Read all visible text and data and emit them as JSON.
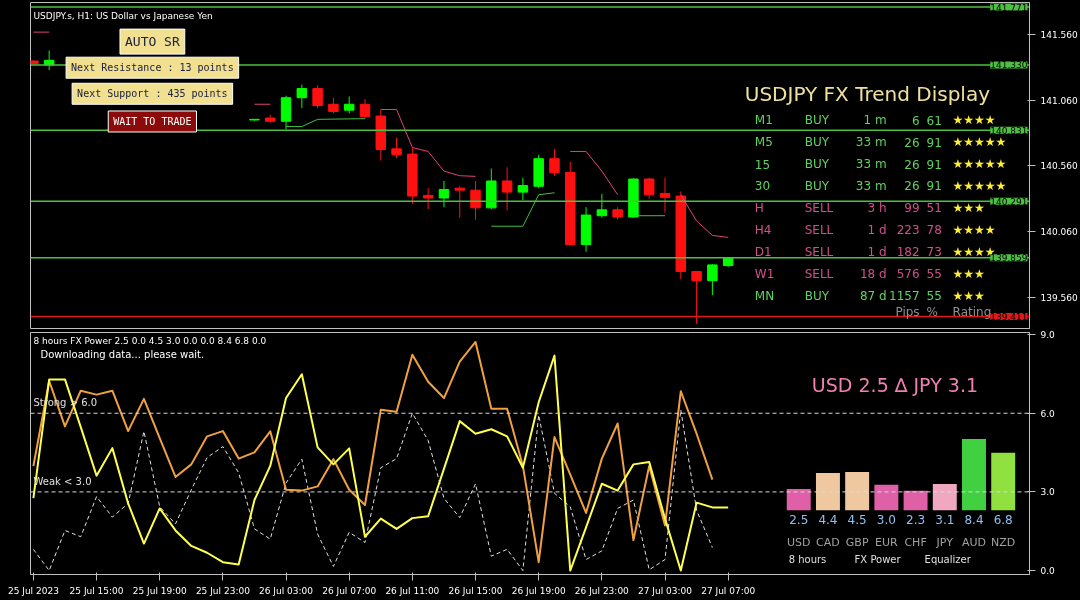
{
  "chart_data": [
    {
      "type": "candlestick",
      "title": "USDJPY.s, H1: US Dollar vs Japanese Yen",
      "annotations": [
        "AUTO SR",
        "Next Resistance : 13 points",
        "Next Support : 435 points",
        "WAIT TO TRADE"
      ],
      "x": [
        "2023-07-25T11:00",
        "2023-07-25T12:00",
        "2023-07-26T01:00",
        "2023-07-26T02:00",
        "2023-07-26T03:00",
        "2023-07-26T04:00",
        "2023-07-26T05:00",
        "2023-07-26T06:00",
        "2023-07-26T07:00",
        "2023-07-26T08:00",
        "2023-07-26T09:00",
        "2023-07-26T10:00",
        "2023-07-26T11:00",
        "2023-07-26T12:00",
        "2023-07-26T13:00",
        "2023-07-26T14:00",
        "2023-07-26T15:00",
        "2023-07-26T16:00",
        "2023-07-26T17:00",
        "2023-07-26T18:00",
        "2023-07-26T19:00",
        "2023-07-26T20:00",
        "2023-07-26T21:00",
        "2023-07-26T22:00",
        "2023-07-26T23:00",
        "2023-07-27T00:00",
        "2023-07-27T01:00",
        "2023-07-27T02:00",
        "2023-07-27T03:00",
        "2023-07-27T04:00",
        "2023-07-27T05:00",
        "2023-07-27T06:00",
        "2023-07-27T07:00"
      ],
      "ohlc": [
        [
          141.36,
          141.365,
          141.335,
          141.34
        ],
        [
          141.33,
          141.44,
          141.29,
          141.365
        ],
        [
          140.91,
          140.915,
          140.905,
          140.915
        ],
        [
          140.925,
          140.95,
          140.89,
          140.9
        ],
        [
          140.9,
          141.095,
          140.84,
          141.08
        ],
        [
          141.08,
          141.18,
          141.0,
          141.15
        ],
        [
          141.15,
          141.175,
          141.0,
          141.02
        ],
        [
          141.03,
          141.08,
          140.96,
          140.975
        ],
        [
          140.985,
          141.09,
          140.96,
          141.03
        ],
        [
          141.03,
          141.07,
          140.92,
          140.935
        ],
        [
          140.94,
          140.99,
          140.6,
          140.685
        ],
        [
          140.69,
          140.775,
          140.62,
          140.645
        ],
        [
          140.65,
          140.7,
          140.27,
          140.33
        ],
        [
          140.335,
          140.39,
          140.23,
          140.315
        ],
        [
          140.315,
          140.445,
          140.245,
          140.38
        ],
        [
          140.39,
          140.405,
          140.165,
          140.375
        ],
        [
          140.375,
          140.445,
          140.15,
          140.24
        ],
        [
          140.24,
          140.54,
          140.23,
          140.445
        ],
        [
          140.445,
          140.55,
          140.22,
          140.36
        ],
        [
          140.36,
          140.47,
          140.3,
          140.41
        ],
        [
          140.405,
          140.645,
          140.39,
          140.615
        ],
        [
          140.615,
          140.69,
          140.485,
          140.51
        ],
        [
          140.51,
          140.59,
          139.955,
          139.96
        ],
        [
          139.96,
          140.245,
          139.905,
          140.185
        ],
        [
          140.18,
          140.345,
          140.165,
          140.225
        ],
        [
          140.225,
          140.245,
          140.15,
          140.17
        ],
        [
          140.17,
          140.465,
          140.165,
          140.46
        ],
        [
          140.46,
          140.47,
          140.31,
          140.34
        ],
        [
          140.35,
          140.47,
          140.205,
          140.32
        ],
        [
          140.33,
          140.365,
          139.695,
          139.755
        ],
        [
          139.755,
          139.755,
          139.355,
          139.685
        ],
        [
          139.685,
          139.81,
          139.575,
          139.805
        ],
        [
          139.8,
          139.86,
          139.79,
          139.86
        ]
      ],
      "series": [
        {
          "type": "line",
          "color": "#e0407a",
          "x": [
            "2023-07-25T11:00",
            "2023-07-25T12:00",
            "2023-07-25T13:00",
            "2023-07-26T01:00",
            "2023-07-26T02:00",
            "2023-07-26T03:00",
            "2023-07-26T09:00",
            "2023-07-26T10:00",
            "2023-07-26T11:00",
            "2023-07-26T12:00",
            "2023-07-26T13:00",
            "2023-07-26T14:00",
            "2023-07-26T15:00",
            "2023-07-26T16:00",
            "2023-07-26T21:00",
            "2023-07-26T22:00",
            "2023-07-26T23:00",
            "2023-07-27T00:00",
            "2023-07-27T01:00",
            "2023-07-27T04:00",
            "2023-07-27T05:00",
            "2023-07-27T06:00",
            "2023-07-27T07:00"
          ],
          "values": [
            141.58,
            141.58,
            null,
            141.03,
            141.03,
            null,
            140.99,
            140.99,
            140.7,
            140.67,
            140.52,
            140.485,
            140.48,
            null,
            140.67,
            140.67,
            140.52,
            140.34,
            null,
            140.34,
            140.14,
            140.03,
            140.015
          ]
        },
        {
          "type": "line",
          "color": "#40c040",
          "x": [
            "2023-07-26T03:00",
            "2023-07-26T04:00",
            "2023-07-26T05:00",
            "2023-07-26T08:00",
            "2023-07-26T09:00",
            "2023-07-26T16:00",
            "2023-07-26T18:00",
            "2023-07-26T19:00",
            "2023-07-26T20:00",
            "2023-07-26T21:00",
            "2023-07-27T01:00",
            "2023-07-27T03:00"
          ],
          "values": [
            140.86,
            140.86,
            140.915,
            140.92,
            null,
            140.1,
            140.1,
            140.34,
            140.355,
            null,
            140.18,
            140.18
          ]
        }
      ],
      "ref_lines": [
        {
          "axis": "y",
          "value": 141.771,
          "label": "141.771",
          "color": "#4cc040"
        },
        {
          "axis": "y",
          "value": 141.33,
          "label": "141.330",
          "color": "#4cc040"
        },
        {
          "axis": "y",
          "value": 140.831,
          "label": "140.831",
          "color": "#4cc040"
        },
        {
          "axis": "y",
          "value": 140.291,
          "label": "140.291",
          "color": "#4cc040"
        },
        {
          "axis": "y",
          "value": 139.859,
          "label": "139.859",
          "color": "#4cc040"
        },
        {
          "axis": "y",
          "value": 139.411,
          "label": "139.411",
          "color": "#e01818"
        }
      ],
      "xlim": [
        "2023-07-25T10:49",
        "2023-07-28T02:05"
      ],
      "ylim": [
        139.32,
        141.806
      ],
      "yticks": [
        {
          "value": 141.56,
          "label": "141.560"
        },
        {
          "value": 141.06,
          "label": "141.060"
        },
        {
          "value": 140.56,
          "label": "140.560"
        },
        {
          "value": 140.06,
          "label": "140.060"
        },
        {
          "value": 139.56,
          "label": "139.560"
        }
      ],
      "tick_labels": "y"
    },
    {
      "type": "other",
      "title": "USDJPY FX Trend Display",
      "annotations": [
        "M1  BUY  1 m  6  61  ★★★★",
        "M5  BUY  33 m  26  91  ★★★★★",
        "15  BUY  33 m  26  91  ★★★★★",
        "30  BUY  33 m  26  91  ★★★★★",
        "H  SELL  3 h  99  51  ★★★",
        "H4  SELL  1 d  223  78  ★★★★",
        "D1  SELL  1 d  182  73  ★★★★",
        "W1  SELL  18 d  576  55  ★★★",
        "MN  BUY  87 d  1157  55  ★★★",
        "Pips  %  Rating"
      ],
      "colors": [
        "#5fd35f",
        "#5fd35f",
        "#5fd35f",
        "#5fd35f",
        "#d0508a",
        "#d0508a",
        "#d0508a",
        "#d0508a",
        "#5fd35f",
        "#909090"
      ]
    },
    {
      "type": "line",
      "title": "8 hours FX Power 2.5 0.0 4.5 3.0 0.0 0.0 8.4 6.8 0.0",
      "annotations": [
        "Downloading data... please wait."
      ],
      "x": [
        "2023-07-25T11:00",
        "2023-07-25T12:00",
        "2023-07-25T13:00",
        "2023-07-25T14:00",
        "2023-07-25T15:00",
        "2023-07-25T16:00",
        "2023-07-25T17:00",
        "2023-07-25T18:00",
        "2023-07-25T19:00",
        "2023-07-25T20:00",
        "2023-07-25T21:00",
        "2023-07-25T22:00",
        "2023-07-25T23:00",
        "2023-07-26T00:00",
        "2023-07-26T01:00",
        "2023-07-26T02:00",
        "2023-07-26T03:00",
        "2023-07-26T04:00",
        "2023-07-26T05:00",
        "2023-07-26T06:00",
        "2023-07-26T07:00",
        "2023-07-26T08:00",
        "2023-07-26T09:00",
        "2023-07-26T10:00",
        "2023-07-26T11:00",
        "2023-07-26T12:00",
        "2023-07-26T13:00",
        "2023-07-26T14:00",
        "2023-07-26T15:00",
        "2023-07-26T16:00",
        "2023-07-26T17:00",
        "2023-07-26T18:00",
        "2023-07-26T19:00",
        "2023-07-26T20:00",
        "2023-07-26T21:00",
        "2023-07-26T22:00",
        "2023-07-26T23:00",
        "2023-07-27T00:00",
        "2023-07-27T01:00",
        "2023-07-27T02:00",
        "2023-07-27T03:00",
        "2023-07-27T04:00",
        "2023-07-27T05:00",
        "2023-07-27T06:00",
        "2023-07-27T07:00"
      ],
      "series": [
        {
          "color": "#e0e0e0",
          "line_style": "dashed",
          "values": [
            0.81,
            0.0,
            1.53,
            1.29,
            2.82,
            2.04,
            2.56,
            5.31,
            2.43,
            1.78,
            3.08,
            4.31,
            4.73,
            3.73,
            1.59,
            1.2,
            3.34,
            4.25,
            1.39,
            0.16,
            1.46,
            1.07,
            3.92,
            4.27,
            6.0,
            4.96,
            2.76,
            2.02,
            3.31,
            0.55,
            0.81,
            0.0,
            5.93,
            2.95,
            2.43,
            0.42,
            0.75,
            2.37,
            2.69,
            0.03,
            0.42,
            6.13,
            2.3,
            0.88,
            null
          ]
        },
        {
          "color": "#f0a040",
          "values": [
            3.99,
            7.23,
            5.5,
            6.86,
            6.71,
            6.86,
            5.32,
            6.55,
            5.05,
            3.57,
            4.05,
            5.12,
            5.32,
            4.27,
            4.51,
            5.31,
            3.08,
            3.05,
            3.21,
            4.25,
            3.08,
            2.5,
            6.13,
            6.06,
            8.23,
            7.2,
            6.58,
            7.97,
            8.72,
            6.17,
            6.17,
            3.99,
            0.32,
            5.09,
            3.66,
            2.2,
            4.27,
            5.61,
            1.16,
            3.99,
            1.72,
            6.84,
            5.22,
            3.47,
            null
          ]
        },
        {
          "color": "#ffff50",
          "values": [
            2.76,
            7.29,
            7.29,
            5.47,
            3.62,
            4.67,
            2.56,
            1.03,
            2.37,
            1.53,
            0.94,
            0.68,
            0.32,
            0.23,
            2.69,
            3.99,
            6.58,
            7.49,
            4.7,
            4.05,
            4.66,
            1.29,
            1.98,
            1.59,
            2.0,
            2.07,
            3.88,
            5.7,
            5.22,
            5.39,
            5.12,
            3.92,
            6.42,
            8.2,
            0.0,
            1.65,
            3.31,
            3.05,
            4.05,
            4.14,
            1.98,
            0.0,
            2.59,
            2.41,
            2.41
          ]
        }
      ],
      "ref_lines": [
        {
          "axis": "y",
          "value": 6.0,
          "label": "Strong > 6.0",
          "color": "#d8d8d8",
          "line_style": "dashed"
        },
        {
          "axis": "y",
          "value": 3.0,
          "label": "Weak < 3.0",
          "color": "#d8d8d8",
          "line_style": "dashed"
        }
      ],
      "xlim": [
        "2023-07-25T10:49",
        "2023-07-28T02:05"
      ],
      "ylim": [
        -0.15,
        9.08
      ],
      "xticks": [
        {
          "value": "2023-07-25T11:00",
          "label": "25 Jul 2023"
        },
        {
          "value": "2023-07-25T15:00",
          "label": "25 Jul 15:00"
        },
        {
          "value": "2023-07-25T19:00",
          "label": "25 Jul 19:00"
        },
        {
          "value": "2023-07-25T23:00",
          "label": "25 Jul 23:00"
        },
        {
          "value": "2023-07-26T03:00",
          "label": "26 Jul 03:00"
        },
        {
          "value": "2023-07-26T07:00",
          "label": "26 Jul 07:00"
        },
        {
          "value": "2023-07-26T11:00",
          "label": "26 Jul 11:00"
        },
        {
          "value": "2023-07-26T15:00",
          "label": "26 Jul 15:00"
        },
        {
          "value": "2023-07-26T19:00",
          "label": "26 Jul 19:00"
        },
        {
          "value": "2023-07-26T23:00",
          "label": "26 Jul 23:00"
        },
        {
          "value": "2023-07-27T03:00",
          "label": "27 Jul 03:00"
        },
        {
          "value": "2023-07-27T07:00",
          "label": "27 Jul 07:00"
        }
      ],
      "yticks": [
        {
          "value": 0,
          "label": "0.0"
        },
        {
          "value": 3,
          "label": "3.0"
        },
        {
          "value": 6,
          "label": "6.0"
        },
        {
          "value": 9,
          "label": "9.0"
        }
      ]
    },
    {
      "type": "bar",
      "title": "USD 2.5  ∆  JPY 3.1",
      "categories": [
        "USD",
        "CAD",
        "GBP",
        "EUR",
        "CHF",
        "JPY",
        "AUD",
        "NZD"
      ],
      "values": [
        2.5,
        4.4,
        4.5,
        3.0,
        2.3,
        3.1,
        8.4,
        6.8
      ],
      "value_labels": [
        "2.5",
        "4.4",
        "4.5",
        "3.0",
        "2.3",
        "3.1",
        "8.4",
        "6.8"
      ],
      "colors": [
        "#e060a8",
        "#f0c8a0",
        "#f0c8a0",
        "#e060a8",
        "#e060a8",
        "#f0a8c0",
        "#40d040",
        "#90e040"
      ],
      "annotations": [
        "8 hours",
        "FX Power",
        "Equalizer"
      ]
    }
  ]
}
